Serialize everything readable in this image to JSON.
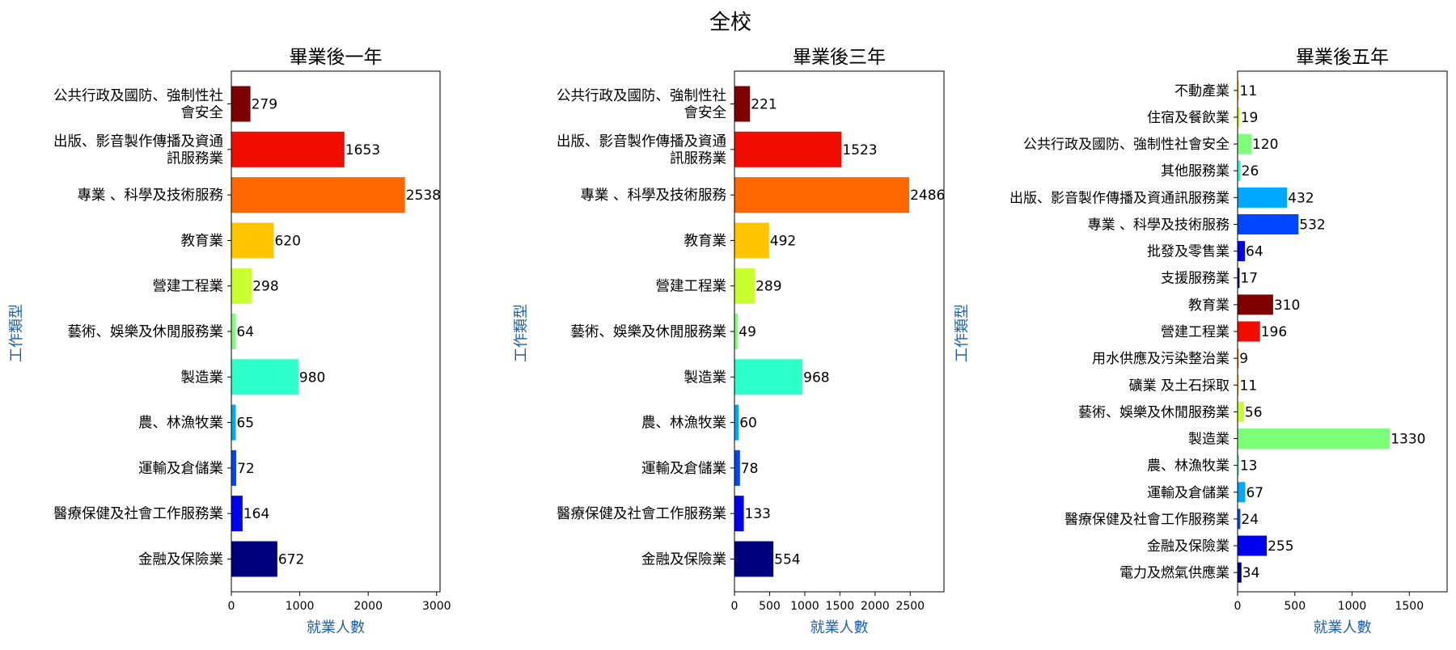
{
  "suptitle": "全校",
  "chart_data": [
    {
      "type": "bar",
      "orientation": "horizontal",
      "title": "畢業後一年",
      "xlabel": "就業人數",
      "ylabel": "工作類型",
      "xlim": [
        0,
        3050
      ],
      "xticks": [
        0,
        1000,
        2000,
        3000
      ],
      "categories": [
        "公共行政及國防、強制性社會安全",
        "出版、影音製作傳播及資通訊服務業",
        "專業 、科學及技術服務",
        "教育業",
        "營建工程業",
        "藝術、娛樂及休閒服務業",
        "製造業",
        "農、林漁牧業",
        "運輸及倉儲業",
        "醫療保健及社會工作服務業",
        "金融及保險業"
      ],
      "category_lines": [
        [
          "公共行政及國防、強制性社",
          "會安全"
        ],
        [
          "出版、影音製作傳播及資通",
          "訊服務業"
        ],
        [
          "專業 、科學及技術服務"
        ],
        [
          "教育業"
        ],
        [
          "營建工程業"
        ],
        [
          "藝術、娛樂及休閒服務業"
        ],
        [
          "製造業"
        ],
        [
          "農、林漁牧業"
        ],
        [
          "運輸及倉儲業"
        ],
        [
          "醫療保健及社會工作服務業"
        ],
        [
          "金融及保險業"
        ]
      ],
      "values": [
        279,
        1653,
        2538,
        620,
        298,
        64,
        980,
        65,
        72,
        164,
        672
      ],
      "colors": [
        "#7f0000",
        "#f10c00",
        "#ff6800",
        "#ffc400",
        "#c9ff2f",
        "#7dff7a",
        "#2cffca",
        "#00a8ff",
        "#0045ff",
        "#0000f1",
        "#00007f"
      ],
      "grid": false
    },
    {
      "type": "bar",
      "orientation": "horizontal",
      "title": "畢業後三年",
      "xlabel": "就業人數",
      "ylabel": "工作類型",
      "xlim": [
        0,
        2980
      ],
      "xticks": [
        0,
        500,
        1000,
        1500,
        2000,
        2500
      ],
      "categories": [
        "公共行政及國防、強制性社會安全",
        "出版、影音製作傳播及資通訊服務業",
        "專業 、科學及技術服務",
        "教育業",
        "營建工程業",
        "藝術、娛樂及休閒服務業",
        "製造業",
        "農、林漁牧業",
        "運輸及倉儲業",
        "醫療保健及社會工作服務業",
        "金融及保險業"
      ],
      "category_lines": [
        [
          "公共行政及國防、強制性社",
          "會安全"
        ],
        [
          "出版、影音製作傳播及資通",
          "訊服務業"
        ],
        [
          "專業 、科學及技術服務"
        ],
        [
          "教育業"
        ],
        [
          "營建工程業"
        ],
        [
          "藝術、娛樂及休閒服務業"
        ],
        [
          "製造業"
        ],
        [
          "農、林漁牧業"
        ],
        [
          "運輸及倉儲業"
        ],
        [
          "醫療保健及社會工作服務業"
        ],
        [
          "金融及保險業"
        ]
      ],
      "values": [
        221,
        1523,
        2486,
        492,
        289,
        49,
        968,
        60,
        78,
        133,
        554
      ],
      "colors": [
        "#7f0000",
        "#f10c00",
        "#ff6800",
        "#ffc400",
        "#c9ff2f",
        "#7dff7a",
        "#2cffca",
        "#00a8ff",
        "#0045ff",
        "#0000f1",
        "#00007f"
      ],
      "grid": false
    },
    {
      "type": "bar",
      "orientation": "horizontal",
      "title": "畢業後五年",
      "xlabel": "就業人數",
      "ylabel": "工作類型",
      "xlim": [
        0,
        1830
      ],
      "xticks": [
        0,
        500,
        1000,
        1500
      ],
      "categories": [
        "不動產業",
        "住宿及餐飲業",
        "公共行政及國防、強制性社會安全",
        "其他服務業",
        "出版、影音製作傳播及資通訊服務業",
        "專業 、科學及技術服務",
        "批發及零售業",
        "支援服務業",
        "教育業",
        "營建工程業",
        "用水供應及污染整治業",
        "礦業 及土石採取",
        "藝術、娛樂及休閒服務業",
        "製造業",
        "農、林漁牧業",
        "運輸及倉儲業",
        "醫療保健及社會工作服務業",
        "金融及保險業",
        "電力及燃氣供應業"
      ],
      "category_lines": [
        [
          "不動產業"
        ],
        [
          "住宿及餐飲業"
        ],
        [
          "公共行政及國防、強制性社會安全"
        ],
        [
          "其他服務業"
        ],
        [
          "出版、影音製作傳播及資通訊服務業"
        ],
        [
          "專業 、科學及技術服務"
        ],
        [
          "批發及零售業"
        ],
        [
          "支援服務業"
        ],
        [
          "教育業"
        ],
        [
          "營建工程業"
        ],
        [
          "用水供應及污染整治業"
        ],
        [
          "礦業 及土石採取"
        ],
        [
          "藝術、娛樂及休閒服務業"
        ],
        [
          "製造業"
        ],
        [
          "農、林漁牧業"
        ],
        [
          "運輸及倉儲業"
        ],
        [
          "醫療保健及社會工作服務業"
        ],
        [
          "金融及保險業"
        ],
        [
          "電力及燃氣供應業"
        ]
      ],
      "values": [
        11,
        19,
        120,
        26,
        432,
        532,
        64,
        17,
        310,
        196,
        9,
        11,
        56,
        1330,
        13,
        67,
        24,
        255,
        34
      ],
      "colors": [
        "#ffc400",
        "#c9ff2f",
        "#7dff7a",
        "#2cffca",
        "#00a8ff",
        "#0045ff",
        "#0000f1",
        "#00007f",
        "#7f0000",
        "#f10c00",
        "#ff6800",
        "#ffc400",
        "#c9ff2f",
        "#7dff7a",
        "#2cffca",
        "#00a8ff",
        "#0045ff",
        "#0000f1",
        "#00007f"
      ],
      "grid": false
    }
  ]
}
